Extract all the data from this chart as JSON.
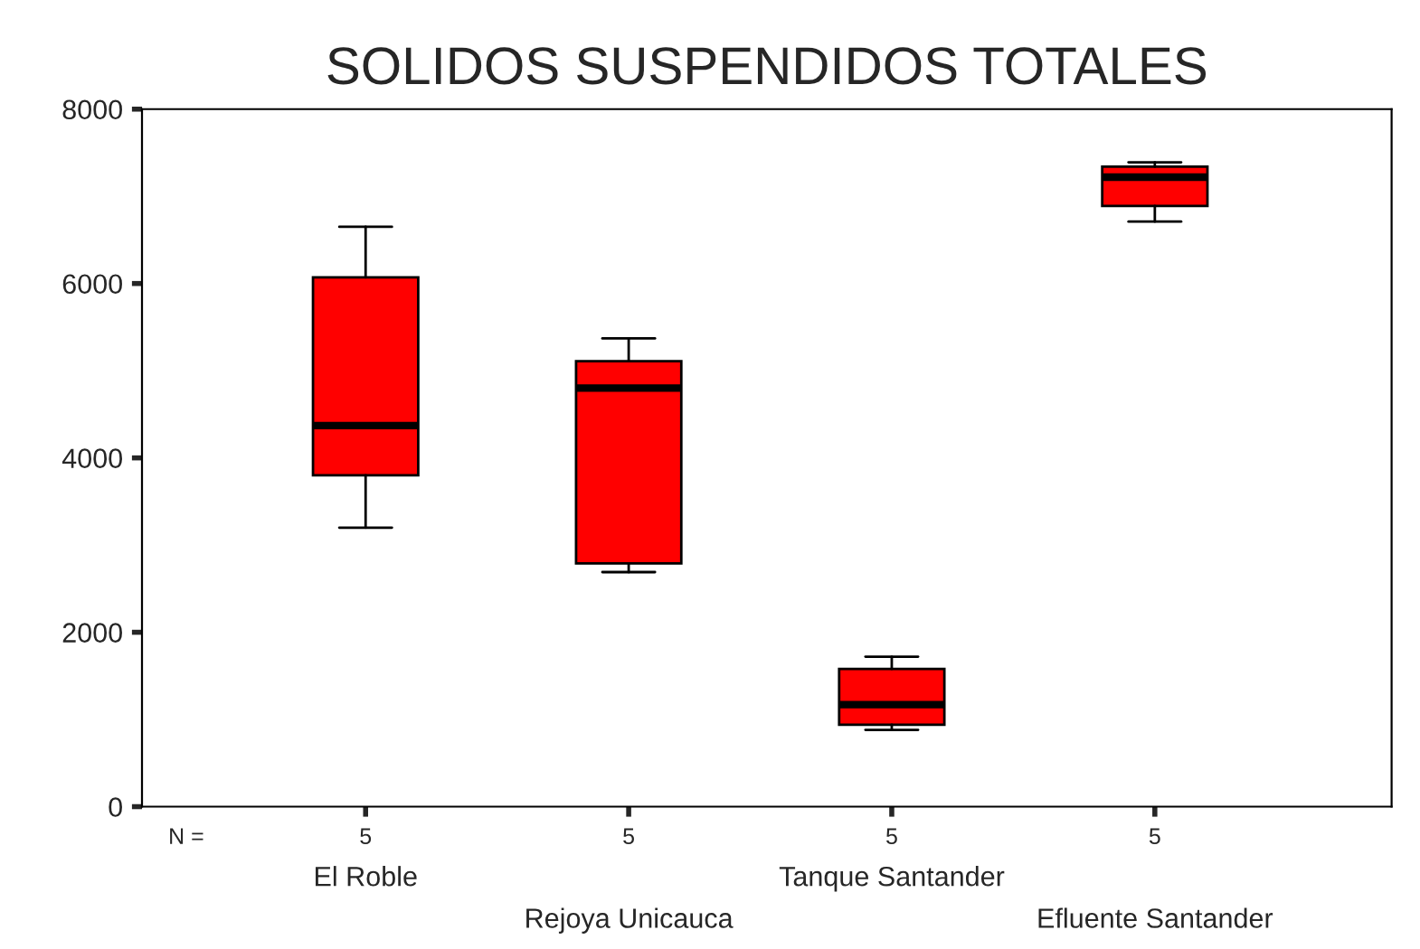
{
  "chart_data": {
    "type": "box",
    "title": "SOLIDOS SUSPENDIDOS TOTALES",
    "categories": [
      "El Roble",
      "Rejoya Unicauca",
      "Tanque Santander",
      "Efluente Santander"
    ],
    "boxes": [
      {
        "low": 3200,
        "q1": 3800,
        "median": 4370,
        "q3": 6070,
        "high": 6650
      },
      {
        "low": 2690,
        "q1": 2790,
        "median": 4800,
        "q3": 5110,
        "high": 5370
      },
      {
        "low": 880,
        "q1": 940,
        "median": 1170,
        "q3": 1580,
        "high": 1720
      },
      {
        "low": 6710,
        "q1": 6890,
        "median": 7220,
        "q3": 7340,
        "high": 7390
      }
    ],
    "color": "#ff0000",
    "annotations": [
      "N =",
      "5",
      "5",
      "5",
      "5"
    ],
    "ylim": [
      0,
      8000
    ],
    "yticks": [
      0,
      2000,
      4000,
      6000,
      8000
    ],
    "grid": false
  }
}
